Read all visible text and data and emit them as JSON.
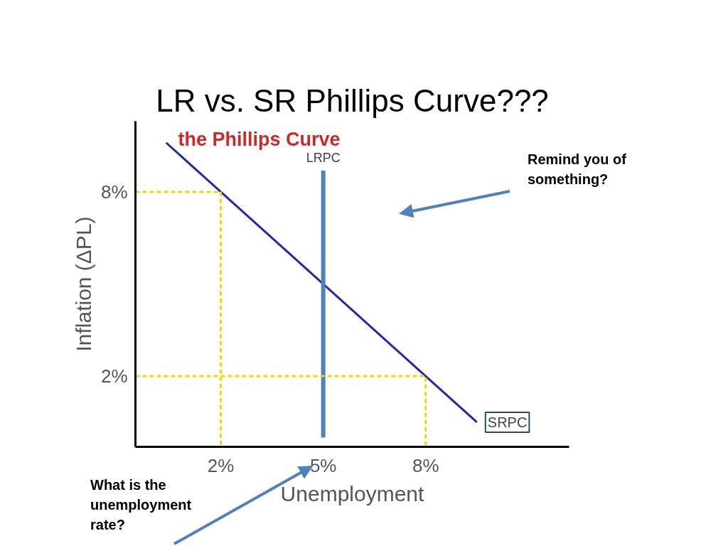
{
  "chart_data": {
    "type": "line",
    "title": "LR vs. SR Phillips Curve???",
    "subtitle": "the Phillips Curve",
    "xlabel": "Unemployment",
    "ylabel": "Inflation (ΔPL)",
    "xlim": [
      -0.5,
      12.2
    ],
    "ylim": [
      -0.3,
      10.3
    ],
    "xticks": [
      {
        "value": 2,
        "label": "2%"
      },
      {
        "value": 5,
        "label": "5%"
      },
      {
        "value": 8,
        "label": "8%"
      }
    ],
    "yticks": [
      {
        "value": 2,
        "label": "2%"
      },
      {
        "value": 8,
        "label": "8%"
      }
    ],
    "grid": false,
    "marker": "none",
    "series": [
      {
        "name": "SRPC",
        "color": "#2323b4",
        "x": [
          0.4,
          2,
          8,
          9.5
        ],
        "values": [
          9.6,
          8,
          2,
          0.5
        ]
      },
      {
        "name": "LRPC",
        "color": "#4f81bd",
        "x": [
          5,
          5
        ],
        "values": [
          0,
          8.7
        ]
      },
      {
        "color": "#f2d600",
        "line_style": "dashed",
        "x": [
          -0.5,
          2,
          2
        ],
        "values": [
          8,
          8,
          -0.3
        ]
      },
      {
        "color": "#f2d600",
        "line_style": "dashed",
        "x": [
          -0.5,
          8,
          8
        ],
        "values": [
          2,
          2,
          -0.3
        ]
      }
    ],
    "annotations": [
      "Remind you of something?",
      "What is the unemployment rate?"
    ]
  }
}
